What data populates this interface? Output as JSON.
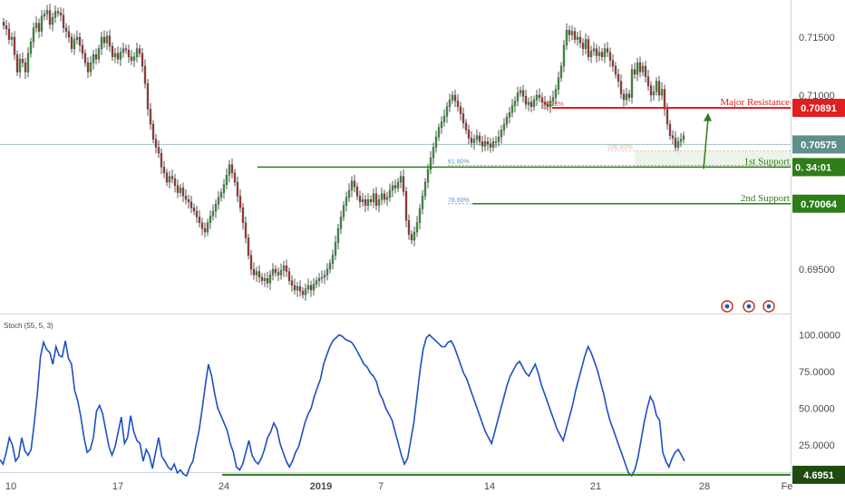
{
  "chart_data": [
    {
      "type": "candlestick",
      "title": "",
      "y_ticks": [
        "0.71500",
        "0.71000",
        "0.69500"
      ],
      "ylim": [
        0.6925,
        0.7175
      ],
      "candles_close_approx": [
        0.716,
        0.7157,
        0.7148,
        0.715,
        0.7135,
        0.712,
        0.7131,
        0.7128,
        0.712,
        0.7136,
        0.7146,
        0.7158,
        0.7162,
        0.7155,
        0.7168,
        0.717,
        0.7173,
        0.7161,
        0.7167,
        0.7172,
        0.7171,
        0.7169,
        0.7158,
        0.7155,
        0.715,
        0.714,
        0.7148,
        0.715,
        0.7143,
        0.7136,
        0.7128,
        0.712,
        0.7128,
        0.7135,
        0.7131,
        0.714,
        0.715,
        0.7145,
        0.7151,
        0.7142,
        0.7133,
        0.7136,
        0.7131,
        0.7137,
        0.714,
        0.7139,
        0.7133,
        0.713,
        0.7133,
        0.714,
        0.7136,
        0.7125,
        0.711,
        0.7088,
        0.7075,
        0.7062,
        0.7055,
        0.705,
        0.7038,
        0.7033,
        0.7025,
        0.703,
        0.7028,
        0.7022,
        0.7016,
        0.702,
        0.7013,
        0.701,
        0.7008,
        0.7003,
        0.7,
        0.6995,
        0.699,
        0.6985,
        0.6982,
        0.699,
        0.6996,
        0.7,
        0.7006,
        0.7012,
        0.7016,
        0.7023,
        0.7031,
        0.704,
        0.7033,
        0.7025,
        0.7013,
        0.7003,
        0.699,
        0.6977,
        0.6962,
        0.695,
        0.6945,
        0.6948,
        0.6943,
        0.694,
        0.6942,
        0.6938,
        0.6945,
        0.695,
        0.6947,
        0.6945,
        0.6949,
        0.6953,
        0.6948,
        0.694,
        0.6936,
        0.6932,
        0.6935,
        0.6931,
        0.6928,
        0.6933,
        0.6936,
        0.6932,
        0.6937,
        0.694,
        0.6942,
        0.6943,
        0.6945,
        0.695,
        0.6955,
        0.6962,
        0.6973,
        0.6985,
        0.6995,
        0.7005,
        0.7012,
        0.7018,
        0.7026,
        0.7021,
        0.7013,
        0.7008,
        0.701,
        0.7005,
        0.701,
        0.7008,
        0.7015,
        0.7005,
        0.701,
        0.7015,
        0.701,
        0.7012,
        0.7018,
        0.7022,
        0.702,
        0.7025,
        0.703,
        0.7017,
        0.6992,
        0.698,
        0.6975,
        0.6982,
        0.699,
        0.7002,
        0.7013,
        0.7025,
        0.7036,
        0.7046,
        0.7055,
        0.7064,
        0.7072,
        0.7077,
        0.7082,
        0.709,
        0.7096,
        0.71,
        0.7095,
        0.709,
        0.7084,
        0.7076,
        0.707,
        0.7063,
        0.7059,
        0.7062,
        0.7065,
        0.706,
        0.7056,
        0.706,
        0.7058,
        0.7055,
        0.706,
        0.706,
        0.7064,
        0.707,
        0.7075,
        0.7081,
        0.7085,
        0.7091,
        0.7095,
        0.7102,
        0.7104,
        0.7099,
        0.7092,
        0.7094,
        0.709,
        0.7096,
        0.71,
        0.7098,
        0.7094,
        0.7092,
        0.709,
        0.7095,
        0.7098,
        0.7105,
        0.7115,
        0.7125,
        0.7143,
        0.7156,
        0.7152,
        0.7155,
        0.7148,
        0.715,
        0.7145,
        0.714,
        0.7148,
        0.7133,
        0.7138,
        0.714,
        0.7134,
        0.7137,
        0.7133,
        0.714,
        0.7137,
        0.713,
        0.7125,
        0.7118,
        0.7112,
        0.7101,
        0.7096,
        0.7101,
        0.7098,
        0.7122,
        0.7118,
        0.7128,
        0.712,
        0.7125,
        0.7116,
        0.7108,
        0.71,
        0.7103,
        0.7112,
        0.71,
        0.7105,
        0.7088,
        0.7075,
        0.7065,
        0.7063,
        0.7055,
        0.706,
        0.7062,
        0.7065,
        0.706,
        0.7058,
        0.7055
      ],
      "horizontal_levels": [
        {
          "label": "Major Resistance",
          "value": 0.70891,
          "tag": "0.70891",
          "color": "#e02020"
        },
        {
          "label": "1st Support",
          "value": 0.7038,
          "tag": "34:01",
          "tag_prefix": "0.",
          "color": "#2e7d1a"
        },
        {
          "label": "2nd Support",
          "value": 0.70064,
          "tag": "0.70064",
          "color": "#2e7d1a"
        }
      ],
      "current_price_tag": "0.70575",
      "fib_labels": [
        "38.20%",
        "100.00%",
        "61.80%",
        "78.60%"
      ],
      "icons": [
        "flag-icon",
        "flag-icon",
        "flag-icon"
      ]
    },
    {
      "type": "line",
      "title": "Stoch (55, 5, 3)",
      "y_ticks": [
        "100.0000",
        "75.0000",
        "50.0000",
        "25.0000"
      ],
      "ylim": [
        0,
        100
      ],
      "level_tag": "4.6951",
      "level_value": 4.6951,
      "values": [
        15,
        12,
        20,
        30,
        25,
        14,
        17,
        30,
        21,
        18,
        22,
        40,
        60,
        85,
        95,
        90,
        88,
        80,
        92,
        86,
        85,
        96,
        84,
        80,
        62,
        55,
        44,
        30,
        20,
        22,
        30,
        48,
        52,
        46,
        35,
        24,
        18,
        24,
        34,
        44,
        26,
        30,
        45,
        34,
        28,
        26,
        14,
        22,
        18,
        9,
        20,
        30,
        17,
        14,
        10,
        8,
        12,
        6,
        8,
        5,
        4,
        10,
        14,
        25,
        35,
        50,
        66,
        80,
        72,
        60,
        50,
        45,
        40,
        35,
        26,
        20,
        10,
        8,
        12,
        20,
        28,
        18,
        14,
        12,
        16,
        22,
        30,
        34,
        40,
        36,
        26,
        20,
        14,
        10,
        14,
        20,
        24,
        32,
        40,
        46,
        50,
        58,
        64,
        70,
        80,
        86,
        92,
        96,
        98,
        100,
        99,
        97,
        96,
        95,
        92,
        88,
        84,
        80,
        78,
        74,
        72,
        68,
        60,
        56,
        50,
        46,
        42,
        34,
        26,
        18,
        12,
        16,
        28,
        40,
        58,
        76,
        90,
        98,
        100,
        98,
        96,
        94,
        92,
        92,
        95,
        96,
        92,
        86,
        80,
        74,
        70,
        64,
        58,
        52,
        46,
        40,
        34,
        30,
        26,
        34,
        42,
        50,
        58,
        66,
        72,
        76,
        80,
        82,
        78,
        74,
        72,
        76,
        80,
        74,
        66,
        60,
        54,
        48,
        42,
        36,
        32,
        28,
        36,
        44,
        52,
        62,
        70,
        78,
        86,
        92,
        88,
        82,
        76,
        68,
        60,
        50,
        42,
        36,
        30,
        24,
        18,
        12,
        6,
        4,
        8,
        16,
        28,
        40,
        50,
        58,
        54,
        45,
        42,
        20,
        14,
        10,
        16,
        20,
        22,
        18,
        14
      ]
    }
  ],
  "x_ticks": [
    "10",
    "17",
    "24",
    "2019",
    "7",
    "14",
    "21",
    "28",
    "Fe"
  ]
}
